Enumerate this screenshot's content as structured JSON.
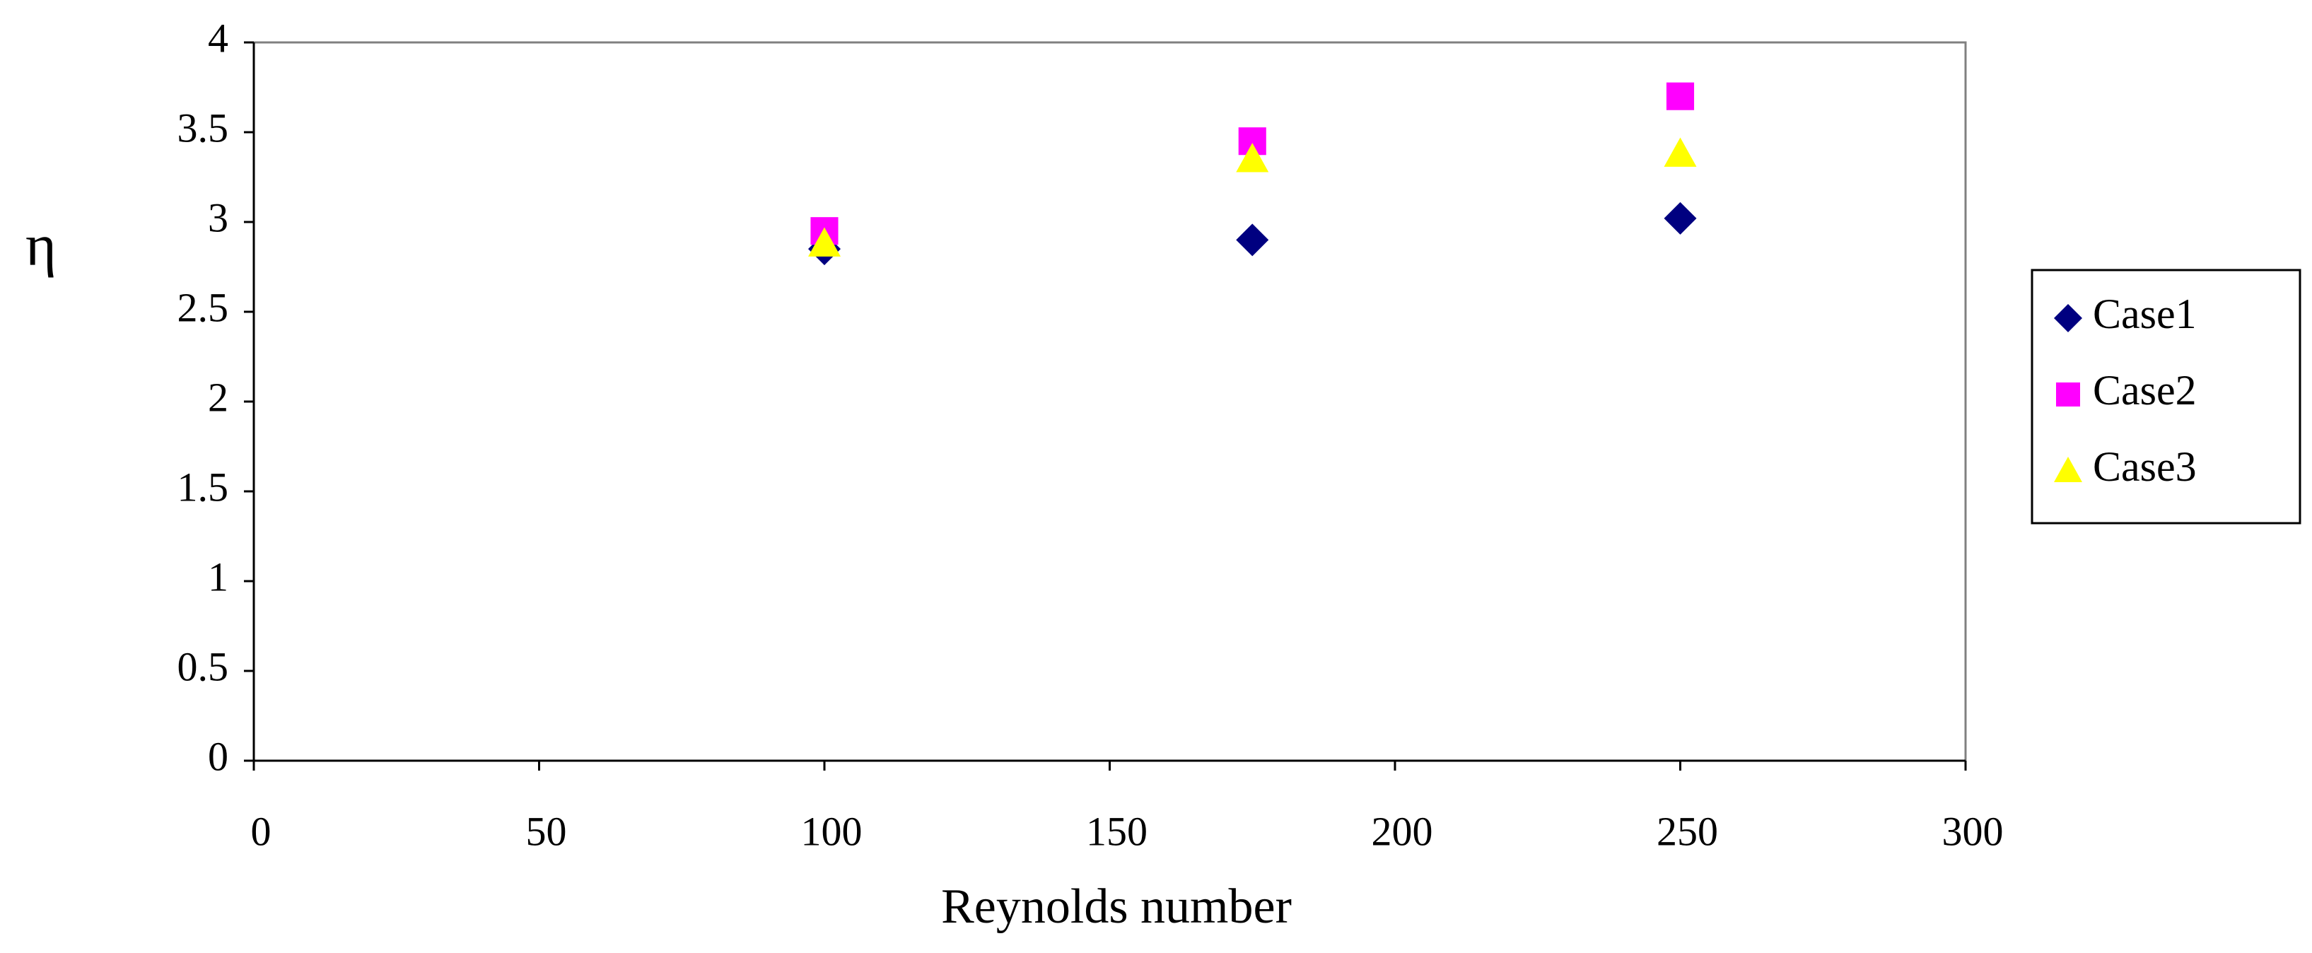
{
  "chart_data": {
    "type": "scatter",
    "x_label": "Reynolds number",
    "y_label": "η",
    "x": [
      100,
      175,
      250
    ],
    "series": [
      {
        "name": "Case1",
        "color": "#000080",
        "marker": "diamond",
        "values": [
          2.85,
          2.9,
          3.02
        ]
      },
      {
        "name": "Case2",
        "color": "#ff00ff",
        "marker": "square",
        "values": [
          2.95,
          3.45,
          3.7
        ]
      },
      {
        "name": "Case3",
        "color": "#ffff00",
        "marker": "triangle",
        "values": [
          2.88,
          3.35,
          3.38
        ]
      }
    ],
    "xlim": [
      0,
      300
    ],
    "xticks": [
      0,
      50,
      100,
      150,
      200,
      250,
      300
    ],
    "ylim": [
      0,
      4
    ],
    "yticks": [
      0,
      0.5,
      1,
      1.5,
      2,
      2.5,
      3,
      3.5,
      4
    ],
    "grid": false,
    "legend": "right"
  }
}
